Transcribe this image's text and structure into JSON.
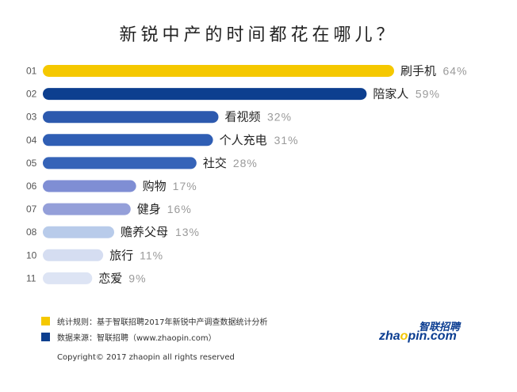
{
  "chart_data": {
    "type": "bar",
    "title": "新锐中产的时间都花在哪儿？",
    "ranks": [
      "01",
      "02",
      "03",
      "04",
      "05",
      "06",
      "07",
      "08",
      "10",
      "11"
    ],
    "categories": [
      "刷手机",
      "陪家人",
      "看视频",
      "个人充电",
      "社交",
      "购物",
      "健身",
      "赡养父母",
      "旅行",
      "恋爱"
    ],
    "values": [
      64,
      59,
      32,
      31,
      28,
      17,
      16,
      13,
      11,
      9
    ],
    "value_labels": [
      "64%",
      "59%",
      "32%",
      "31%",
      "28%",
      "17%",
      "16%",
      "13%",
      "11%",
      "9%"
    ],
    "colors": [
      "#F5C800",
      "#0D3F8F",
      "#2C59AE",
      "#2F5EB4",
      "#3563B8",
      "#7F8ED4",
      "#949FD9",
      "#B8CBEA",
      "#D5DDF1",
      "#DDE4F4"
    ],
    "orientation": "horizontal",
    "xlim": [
      0,
      64
    ]
  },
  "legend": {
    "rule_color": "#F5C800",
    "source_color": "#0D3F8F",
    "rule_text": "统计规则：基于智联招聘2017年新锐中产调查数据统计分析",
    "source_text": "数据来源：智联招聘（www.zhaopin.com）"
  },
  "copyright": "Copyright© 2017 zhaopin all rights reserved",
  "logo": {
    "cn": "智联招聘",
    "en_pre": "zha",
    "en_o": "o",
    "en_post": "pin.com"
  }
}
